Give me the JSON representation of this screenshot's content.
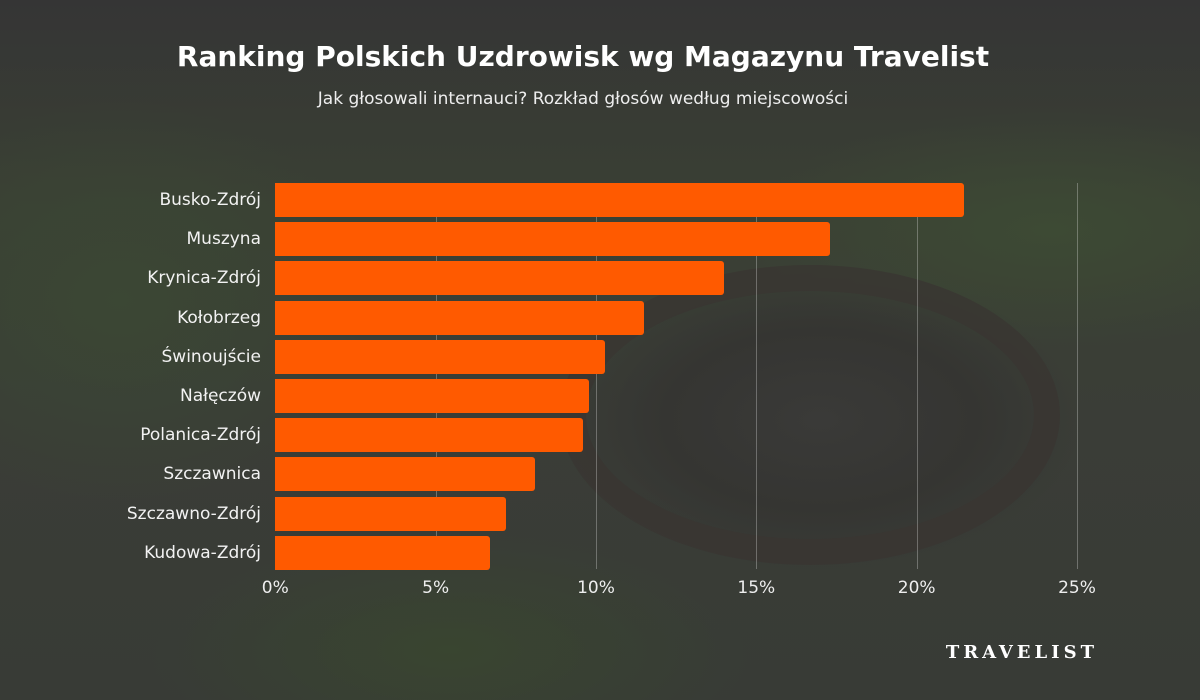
{
  "chart_data": {
    "type": "bar",
    "orientation": "horizontal",
    "title": "Ranking Polskich Uzdrowisk wg Magazynu Travelist",
    "subtitle": "Jak głosowali internauci? Rozkład głosów według miejscowości",
    "categories": [
      "Busko-Zdrój",
      "Muszyna",
      "Krynica-Zdrój",
      "Kołobrzeg",
      "Świnoujście",
      "Nałęczów",
      "Polanica-Zdrój",
      "Szczawnica",
      "Szczawno-Zdrój",
      "Kudowa-Zdrój"
    ],
    "values": [
      21.5,
      17.3,
      14.0,
      11.5,
      10.3,
      9.8,
      9.6,
      8.1,
      7.2,
      6.7
    ],
    "xlim": [
      0,
      25
    ],
    "xticks": [
      0,
      5,
      10,
      15,
      20,
      25
    ],
    "xtick_labels": [
      "0%",
      "5%",
      "10%",
      "15%",
      "20%",
      "25%"
    ],
    "grid": "vertical",
    "bar_color": "#ff5a00",
    "unit": "%"
  },
  "brand": {
    "logo": "TRAVELIST"
  }
}
